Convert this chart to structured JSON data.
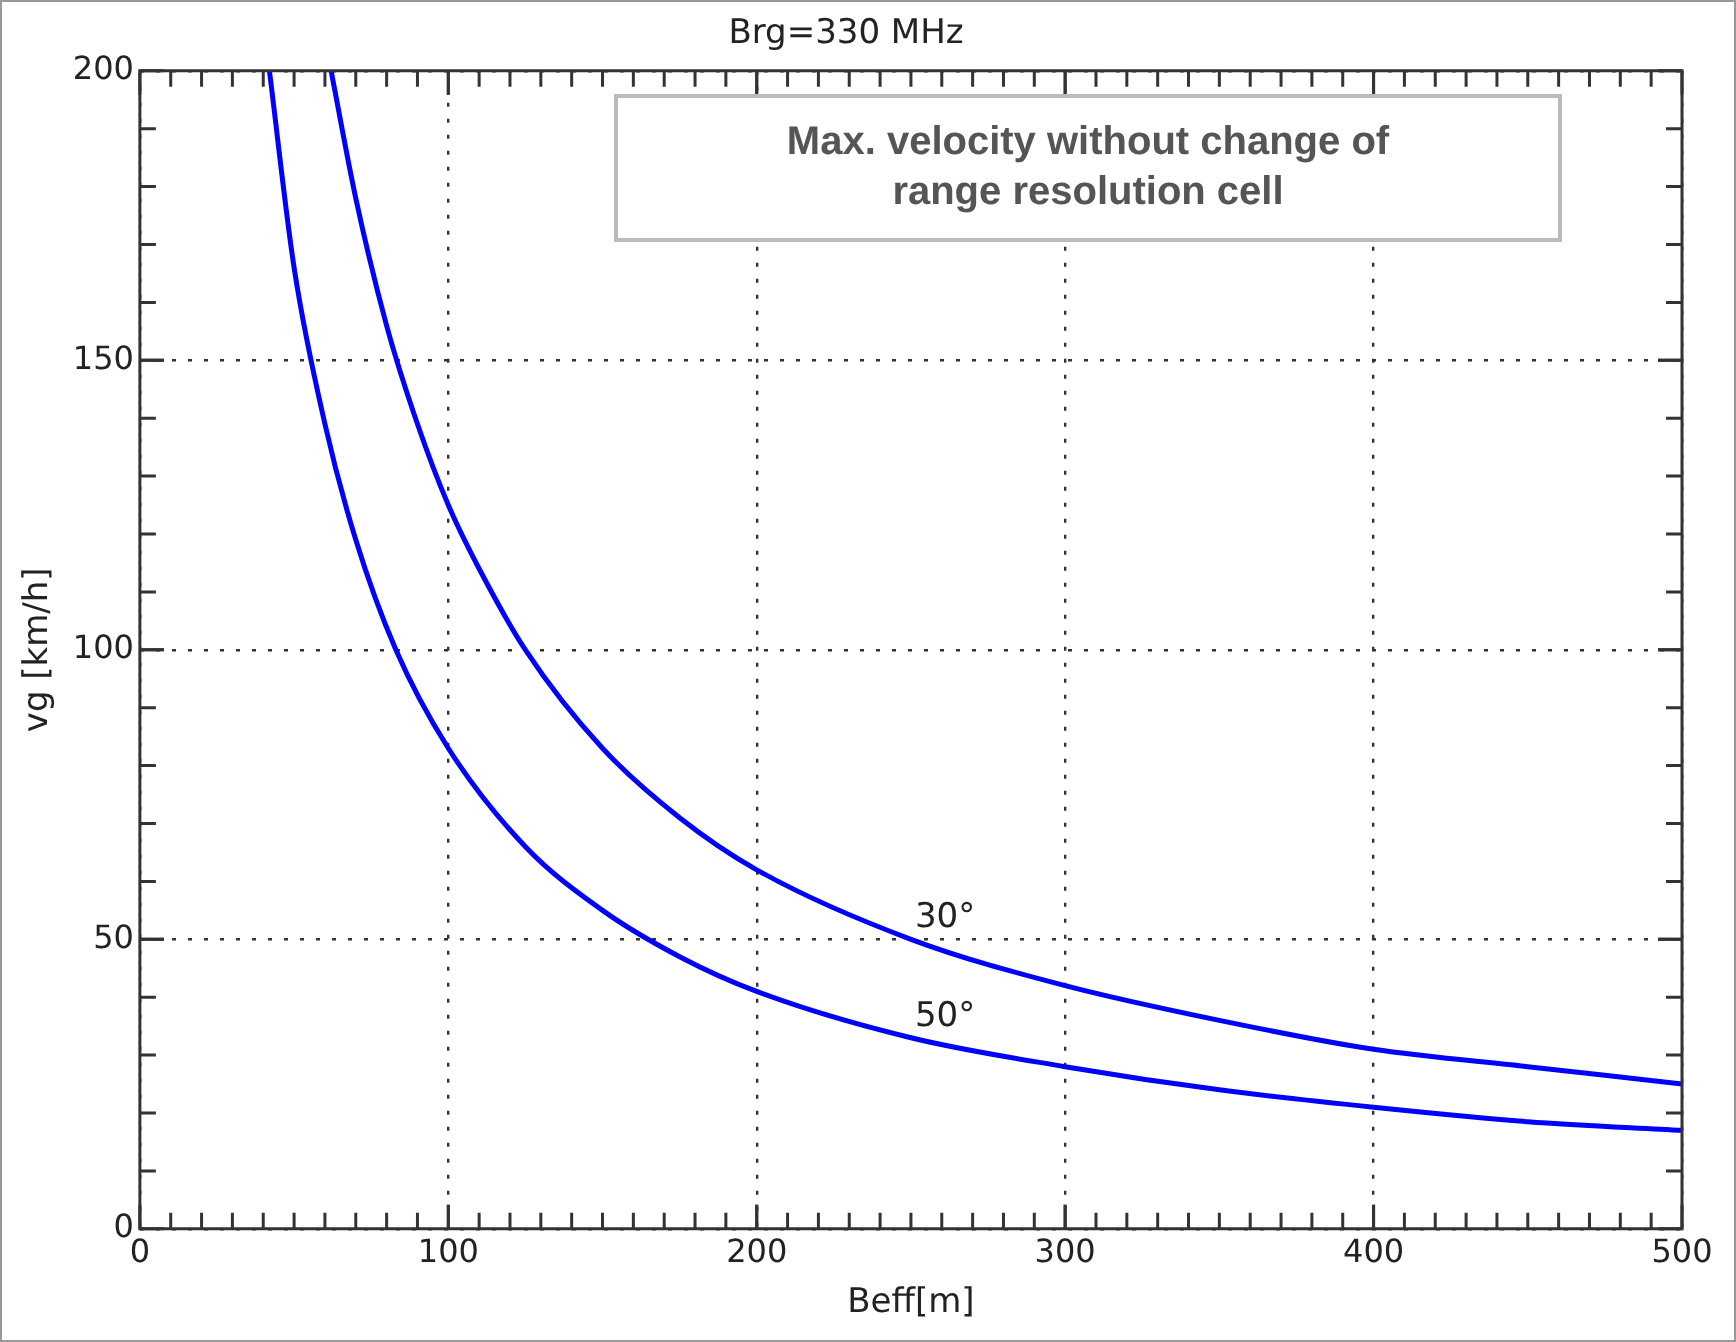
{
  "chart_data": {
    "type": "line",
    "title": "Brg=330 MHz",
    "xlabel": "Beff[m]",
    "ylabel": "vg [km/h]",
    "annotations": [
      "Max. velocity without change of range resolution cell"
    ],
    "xlim": [
      0,
      500
    ],
    "xticks": [
      0,
      100,
      200,
      300,
      400,
      500
    ],
    "ylim": [
      0,
      200
    ],
    "yticks": [
      0,
      50,
      100,
      150,
      200
    ],
    "grid": true,
    "legend": false,
    "marker": "none",
    "line_style": "solid",
    "series": [
      {
        "name": "30°",
        "color": "#0000ff",
        "x": [
          62,
          70,
          80,
          90,
          100,
          110,
          125,
          150,
          175,
          200,
          250,
          300,
          350,
          400,
          450,
          500
        ],
        "values": [
          200,
          178,
          156,
          139,
          125,
          114,
          100,
          83,
          71,
          62,
          50,
          42,
          36,
          31,
          28,
          25
        ]
      },
      {
        "name": "50°",
        "color": "#0000ff",
        "x": [
          42,
          50,
          60,
          70,
          83,
          100,
          125,
          150,
          175,
          200,
          250,
          300,
          350,
          400,
          450,
          500
        ],
        "values": [
          200,
          166,
          139,
          119,
          100,
          83,
          66,
          55,
          47,
          41,
          33,
          28,
          24,
          21,
          18.5,
          17
        ]
      }
    ]
  }
}
